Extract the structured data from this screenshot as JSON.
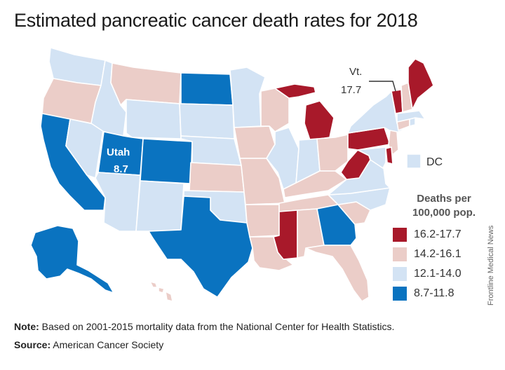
{
  "title": "Estimated pancreatic cancer death rates for 2018",
  "legend": {
    "title_line1": "Deaths per",
    "title_line2": "100,000 pop.",
    "items": [
      {
        "label": "16.2-17.7",
        "color": "#a8192a"
      },
      {
        "label": "14.2-16.1",
        "color": "#ebcdc8"
      },
      {
        "label": "12.1-14.0",
        "color": "#d3e3f4"
      },
      {
        "label": "8.7-11.8",
        "color": "#0a73c0"
      }
    ]
  },
  "annotations": {
    "utah_name": "Utah",
    "utah_value": "8.7",
    "vt_name": "Vt.",
    "vt_value": "17.7",
    "dc_label": "DC"
  },
  "note_label": "Note:",
  "note_text": " Based on 2001-2015 mortality data from the National Center for Health Statistics.",
  "source_label": "Source:",
  "source_text": " American Cancer Society",
  "credit": "Frontline Medical News",
  "colors": {
    "highest": "#a8192a",
    "high": "#ebcdc8",
    "mid": "#d3e3f4",
    "low": "#0a73c0"
  },
  "states": [
    {
      "code": "WA",
      "rate_range": "12.1-14.0"
    },
    {
      "code": "OR",
      "rate_range": "14.2-16.1"
    },
    {
      "code": "CA",
      "rate_range": "8.7-11.8"
    },
    {
      "code": "NV",
      "rate_range": "12.1-14.0"
    },
    {
      "code": "ID",
      "rate_range": "12.1-14.0"
    },
    {
      "code": "MT",
      "rate_range": "14.2-16.1"
    },
    {
      "code": "WY",
      "rate_range": "12.1-14.0"
    },
    {
      "code": "UT",
      "rate_range": "8.7-11.8"
    },
    {
      "code": "AZ",
      "rate_range": "12.1-14.0"
    },
    {
      "code": "CO",
      "rate_range": "8.7-11.8"
    },
    {
      "code": "NM",
      "rate_range": "12.1-14.0"
    },
    {
      "code": "ND",
      "rate_range": "8.7-11.8"
    },
    {
      "code": "SD",
      "rate_range": "12.1-14.0"
    },
    {
      "code": "NE",
      "rate_range": "12.1-14.0"
    },
    {
      "code": "KS",
      "rate_range": "14.2-16.1"
    },
    {
      "code": "OK",
      "rate_range": "12.1-14.0"
    },
    {
      "code": "TX",
      "rate_range": "8.7-11.8"
    },
    {
      "code": "MN",
      "rate_range": "12.1-14.0"
    },
    {
      "code": "IA",
      "rate_range": "14.2-16.1"
    },
    {
      "code": "MO",
      "rate_range": "14.2-16.1"
    },
    {
      "code": "AR",
      "rate_range": "14.2-16.1"
    },
    {
      "code": "LA",
      "rate_range": "14.2-16.1"
    },
    {
      "code": "WI",
      "rate_range": "14.2-16.1"
    },
    {
      "code": "IL",
      "rate_range": "12.1-14.0"
    },
    {
      "code": "MI",
      "rate_range": "16.2-17.7"
    },
    {
      "code": "IN",
      "rate_range": "12.1-14.0"
    },
    {
      "code": "OH",
      "rate_range": "14.2-16.1"
    },
    {
      "code": "KY",
      "rate_range": "14.2-16.1"
    },
    {
      "code": "TN",
      "rate_range": "14.2-16.1"
    },
    {
      "code": "MS",
      "rate_range": "16.2-17.7"
    },
    {
      "code": "AL",
      "rate_range": "14.2-16.1"
    },
    {
      "code": "GA",
      "rate_range": "8.7-11.8"
    },
    {
      "code": "FL",
      "rate_range": "14.2-16.1"
    },
    {
      "code": "SC",
      "rate_range": "14.2-16.1"
    },
    {
      "code": "NC",
      "rate_range": "12.1-14.0"
    },
    {
      "code": "VA",
      "rate_range": "12.1-14.0"
    },
    {
      "code": "WV",
      "rate_range": "16.2-17.7"
    },
    {
      "code": "PA",
      "rate_range": "16.2-17.7"
    },
    {
      "code": "NY",
      "rate_range": "12.1-14.0"
    },
    {
      "code": "NJ",
      "rate_range": "14.2-16.1"
    },
    {
      "code": "DE",
      "rate_range": "16.2-17.7"
    },
    {
      "code": "MD",
      "rate_range": "12.1-14.0"
    },
    {
      "code": "CT",
      "rate_range": "14.2-16.1"
    },
    {
      "code": "RI",
      "rate_range": "12.1-14.0"
    },
    {
      "code": "MA",
      "rate_range": "12.1-14.0"
    },
    {
      "code": "VT",
      "rate_range": "16.2-17.7"
    },
    {
      "code": "NH",
      "rate_range": "14.2-16.1"
    },
    {
      "code": "ME",
      "rate_range": "16.2-17.7"
    },
    {
      "code": "AK",
      "rate_range": "8.7-11.8"
    },
    {
      "code": "HI",
      "rate_range": "14.2-16.1"
    },
    {
      "code": "DC",
      "rate_range": "12.1-14.0"
    }
  ]
}
